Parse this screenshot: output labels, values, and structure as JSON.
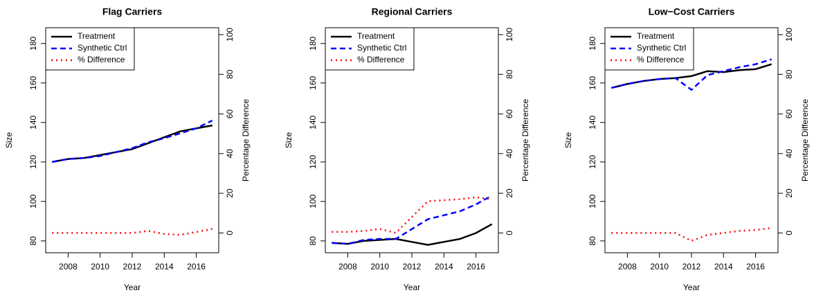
{
  "chart_data": [
    {
      "type": "line",
      "title": "Flag Carriers",
      "xlabel": "Year",
      "ylabel": "Size",
      "y2label": "Percentage Difference",
      "x": [
        2007,
        2008,
        2009,
        2010,
        2011,
        2012,
        2013,
        2014,
        2015,
        2016,
        2017
      ],
      "series": [
        {
          "name": "Treatment",
          "color": "#000000",
          "linestyle": "solid",
          "values": [
            120,
            121.5,
            122,
            123.5,
            125,
            126.5,
            129.5,
            132.5,
            135.5,
            137,
            138.5
          ]
        },
        {
          "name": "Synthetic Ctrl",
          "color": "#0000ff",
          "linestyle": "dashed",
          "values": [
            120,
            121.5,
            122,
            123,
            125,
            127,
            130,
            132,
            134.5,
            137,
            141
          ]
        },
        {
          "name": "% Difference",
          "color": "#ff0000",
          "linestyle": "dotted",
          "axis": "y2",
          "values": [
            0,
            0,
            0,
            0,
            0,
            0,
            1,
            -0.5,
            -1,
            0.5,
            2
          ]
        }
      ],
      "xlim": [
        2006.6,
        2017.4
      ],
      "xticks": [
        2008,
        2010,
        2012,
        2014,
        2016
      ],
      "ylim": [
        74,
        188
      ],
      "yticks": [
        80,
        100,
        120,
        140,
        160,
        180
      ],
      "y2lim": [
        -10,
        103.5
      ],
      "y2ticks": [
        0,
        20,
        40,
        60,
        80,
        100
      ],
      "legend": "topleft"
    },
    {
      "type": "line",
      "title": "Regional Carriers",
      "xlabel": "Year",
      "ylabel": "Size",
      "y2label": "Percentage Difference",
      "x": [
        2007,
        2008,
        2009,
        2010,
        2011,
        2012,
        2013,
        2014,
        2015,
        2016,
        2017
      ],
      "series": [
        {
          "name": "Treatment",
          "color": "#000000",
          "linestyle": "solid",
          "values": [
            79,
            78.5,
            80,
            80.5,
            81,
            79.5,
            78,
            79.5,
            81,
            84,
            88.5
          ]
        },
        {
          "name": "Synthetic Ctrl",
          "color": "#0000ff",
          "linestyle": "dashed",
          "values": [
            79,
            78.5,
            80.5,
            81,
            81,
            86,
            91,
            93,
            95,
            98.5,
            103
          ]
        },
        {
          "name": "% Difference",
          "color": "#ff0000",
          "linestyle": "dotted",
          "axis": "y2",
          "values": [
            0.5,
            0.5,
            1,
            2,
            0,
            8,
            16,
            16.5,
            17,
            18,
            17
          ]
        }
      ],
      "xlim": [
        2006.6,
        2017.4
      ],
      "xticks": [
        2008,
        2010,
        2012,
        2014,
        2016
      ],
      "ylim": [
        74,
        188
      ],
      "yticks": [
        80,
        100,
        120,
        140,
        160,
        180
      ],
      "y2lim": [
        -10,
        103.5
      ],
      "y2ticks": [
        0,
        20,
        40,
        60,
        80,
        100
      ],
      "legend": "topleft"
    },
    {
      "type": "line",
      "title": "Low−Cost Carriers",
      "xlabel": "Year",
      "ylabel": "Size",
      "y2label": "Percentage Difference",
      "x": [
        2007,
        2008,
        2009,
        2010,
        2011,
        2012,
        2013,
        2014,
        2015,
        2016,
        2017
      ],
      "series": [
        {
          "name": "Treatment",
          "color": "#000000",
          "linestyle": "solid",
          "values": [
            157.5,
            159.5,
            161,
            162,
            162.5,
            163.5,
            166,
            165.5,
            166.5,
            167,
            169.5
          ]
        },
        {
          "name": "Synthetic Ctrl",
          "color": "#0000ff",
          "linestyle": "dashed",
          "values": [
            157.5,
            159.5,
            161,
            162,
            162.5,
            156.5,
            164,
            166,
            168,
            169.5,
            172
          ]
        },
        {
          "name": "% Difference",
          "color": "#ff0000",
          "linestyle": "dotted",
          "axis": "y2",
          "values": [
            0,
            0,
            0,
            0,
            0,
            -4,
            -1,
            0,
            1,
            1.5,
            2.5
          ]
        }
      ],
      "xlim": [
        2006.6,
        2017.4
      ],
      "xticks": [
        2008,
        2010,
        2012,
        2014,
        2016
      ],
      "ylim": [
        74,
        188
      ],
      "yticks": [
        80,
        100,
        120,
        140,
        160,
        180
      ],
      "y2lim": [
        -10,
        103.5
      ],
      "y2ticks": [
        0,
        20,
        40,
        60,
        80,
        100
      ],
      "legend": "topleft"
    }
  ]
}
